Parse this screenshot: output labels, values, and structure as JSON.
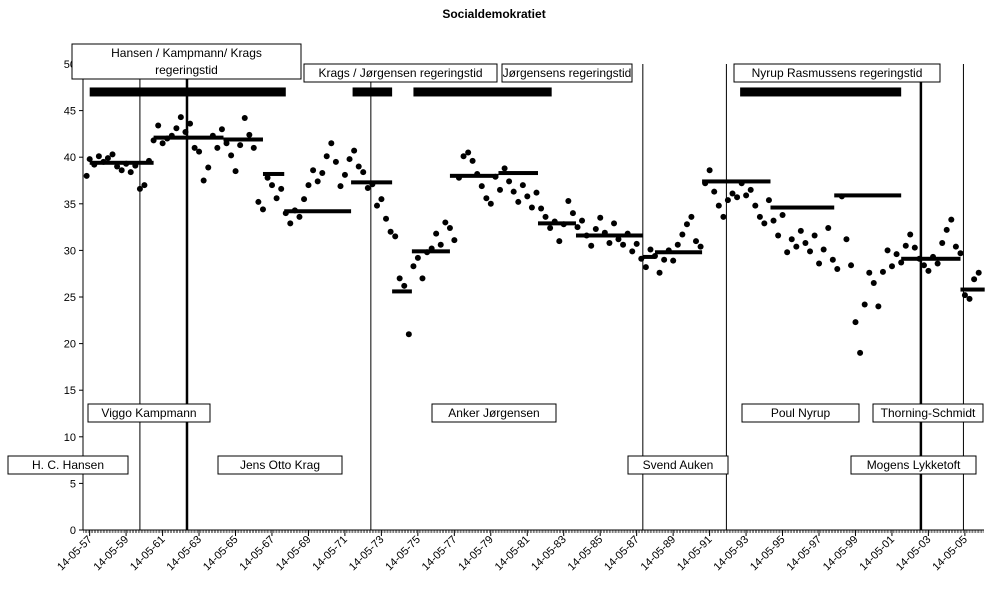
{
  "chart_data": {
    "type": "scatter",
    "title": "Socialdemokratiet",
    "xlabel": "",
    "ylabel": "",
    "ylim": [
      0,
      50
    ],
    "yticks": [
      0,
      5,
      10,
      15,
      20,
      25,
      30,
      35,
      40,
      45,
      50
    ],
    "xlim": [
      "1957-01-01",
      "2006-06-01"
    ],
    "xtick_labels": [
      "14-05-57",
      "14-05-59",
      "14-05-61",
      "14-05-63",
      "14-05-65",
      "14-05-67",
      "14-05-69",
      "14-05-71",
      "14-05-73",
      "14-05-75",
      "14-05-77",
      "14-05-79",
      "14-05-81",
      "14-05-83",
      "14-05-85",
      "14-05-87",
      "14-05-89",
      "14-05-91",
      "14-05-93",
      "14-05-95",
      "14-05-97",
      "14-05-99",
      "14-05-01",
      "14-05-03",
      "14-05-05"
    ],
    "grid": false,
    "poll_points": [
      [
        "1957-03",
        38.0
      ],
      [
        "1957-05",
        39.8
      ],
      [
        "1957-08",
        39.2
      ],
      [
        "1957-11",
        40.1
      ],
      [
        "1958-02",
        39.5
      ],
      [
        "1958-05",
        39.9
      ],
      [
        "1958-08",
        40.3
      ],
      [
        "1958-11",
        39.0
      ],
      [
        "1959-02",
        38.6
      ],
      [
        "1959-05",
        39.3
      ],
      [
        "1959-08",
        38.4
      ],
      [
        "1959-11",
        39.1
      ],
      [
        "1960-02",
        36.6
      ],
      [
        "1960-05",
        37.0
      ],
      [
        "1960-08",
        39.6
      ],
      [
        "1960-11",
        41.8
      ],
      [
        "1961-02",
        43.4
      ],
      [
        "1961-05",
        41.5
      ],
      [
        "1961-08",
        42.0
      ],
      [
        "1961-11",
        42.3
      ],
      [
        "1962-02",
        43.1
      ],
      [
        "1962-05",
        44.3
      ],
      [
        "1962-08",
        42.7
      ],
      [
        "1962-11",
        43.6
      ],
      [
        "1963-02",
        41.0
      ],
      [
        "1963-05",
        40.6
      ],
      [
        "1963-08",
        37.5
      ],
      [
        "1963-11",
        38.9
      ],
      [
        "1964-02",
        42.3
      ],
      [
        "1964-05",
        41.0
      ],
      [
        "1964-08",
        43.0
      ],
      [
        "1964-11",
        41.5
      ],
      [
        "1965-02",
        40.2
      ],
      [
        "1965-05",
        38.5
      ],
      [
        "1965-08",
        41.3
      ],
      [
        "1965-11",
        44.2
      ],
      [
        "1966-02",
        42.4
      ],
      [
        "1966-05",
        41.0
      ],
      [
        "1966-08",
        35.2
      ],
      [
        "1966-11",
        34.4
      ],
      [
        "1967-02",
        37.8
      ],
      [
        "1967-05",
        37.0
      ],
      [
        "1967-08",
        35.6
      ],
      [
        "1967-11",
        36.6
      ],
      [
        "1968-02",
        34.0
      ],
      [
        "1968-05",
        32.9
      ],
      [
        "1968-08",
        34.3
      ],
      [
        "1968-11",
        33.6
      ],
      [
        "1969-02",
        35.5
      ],
      [
        "1969-05",
        37.0
      ],
      [
        "1969-08",
        38.6
      ],
      [
        "1969-11",
        37.4
      ],
      [
        "1970-02",
        38.3
      ],
      [
        "1970-05",
        40.1
      ],
      [
        "1970-08",
        41.5
      ],
      [
        "1970-11",
        39.5
      ],
      [
        "1971-02",
        36.9
      ],
      [
        "1971-05",
        38.1
      ],
      [
        "1971-08",
        39.8
      ],
      [
        "1971-11",
        40.7
      ],
      [
        "1972-02",
        39.0
      ],
      [
        "1972-05",
        38.4
      ],
      [
        "1972-08",
        36.7
      ],
      [
        "1972-11",
        37.1
      ],
      [
        "1973-02",
        34.8
      ],
      [
        "1973-05",
        35.5
      ],
      [
        "1973-08",
        33.4
      ],
      [
        "1973-11",
        32.0
      ],
      [
        "1974-02",
        31.5
      ],
      [
        "1974-05",
        27.0
      ],
      [
        "1974-08",
        26.2
      ],
      [
        "1974-11",
        21.0
      ],
      [
        "1975-02",
        28.3
      ],
      [
        "1975-05",
        29.2
      ],
      [
        "1975-08",
        27.0
      ],
      [
        "1975-11",
        29.8
      ],
      [
        "1976-02",
        30.2
      ],
      [
        "1976-05",
        31.8
      ],
      [
        "1976-08",
        30.6
      ],
      [
        "1976-11",
        33.0
      ],
      [
        "1977-02",
        32.4
      ],
      [
        "1977-05",
        31.1
      ],
      [
        "1977-08",
        37.8
      ],
      [
        "1977-11",
        40.1
      ],
      [
        "1978-02",
        40.5
      ],
      [
        "1978-05",
        39.6
      ],
      [
        "1978-08",
        38.2
      ],
      [
        "1978-11",
        36.9
      ],
      [
        "1979-02",
        35.6
      ],
      [
        "1979-05",
        35.0
      ],
      [
        "1979-08",
        37.9
      ],
      [
        "1979-11",
        36.5
      ],
      [
        "1980-02",
        38.8
      ],
      [
        "1980-05",
        37.4
      ],
      [
        "1980-08",
        36.3
      ],
      [
        "1980-11",
        35.2
      ],
      [
        "1981-02",
        37.0
      ],
      [
        "1981-05",
        35.8
      ],
      [
        "1981-08",
        34.6
      ],
      [
        "1981-11",
        36.2
      ],
      [
        "1982-02",
        34.5
      ],
      [
        "1982-05",
        33.6
      ],
      [
        "1982-08",
        32.4
      ],
      [
        "1982-11",
        33.1
      ],
      [
        "1983-02",
        31.0
      ],
      [
        "1983-05",
        32.8
      ],
      [
        "1983-08",
        35.3
      ],
      [
        "1983-11",
        34.0
      ],
      [
        "1984-02",
        32.5
      ],
      [
        "1984-05",
        33.2
      ],
      [
        "1984-08",
        31.6
      ],
      [
        "1984-11",
        30.5
      ],
      [
        "1985-02",
        32.3
      ],
      [
        "1985-05",
        33.5
      ],
      [
        "1985-08",
        31.9
      ],
      [
        "1985-11",
        30.8
      ],
      [
        "1986-02",
        32.9
      ],
      [
        "1986-05",
        31.2
      ],
      [
        "1986-08",
        30.6
      ],
      [
        "1986-11",
        31.8
      ],
      [
        "1987-02",
        29.9
      ],
      [
        "1987-05",
        30.7
      ],
      [
        "1987-08",
        29.1
      ],
      [
        "1987-11",
        28.2
      ],
      [
        "1988-02",
        30.1
      ],
      [
        "1988-05",
        29.4
      ],
      [
        "1988-08",
        27.6
      ],
      [
        "1988-11",
        29.0
      ],
      [
        "1989-02",
        30.0
      ],
      [
        "1989-05",
        28.9
      ],
      [
        "1989-08",
        30.6
      ],
      [
        "1989-11",
        31.7
      ],
      [
        "1990-02",
        32.8
      ],
      [
        "1990-05",
        33.6
      ],
      [
        "1990-08",
        31.0
      ],
      [
        "1990-11",
        30.4
      ],
      [
        "1991-02",
        37.2
      ],
      [
        "1991-05",
        38.6
      ],
      [
        "1991-08",
        36.3
      ],
      [
        "1991-11",
        34.8
      ],
      [
        "1992-02",
        33.6
      ],
      [
        "1992-05",
        35.4
      ],
      [
        "1992-08",
        36.1
      ],
      [
        "1992-11",
        35.7
      ],
      [
        "1993-02",
        37.2
      ],
      [
        "1993-05",
        35.9
      ],
      [
        "1993-08",
        36.5
      ],
      [
        "1993-11",
        34.8
      ],
      [
        "1994-02",
        33.6
      ],
      [
        "1994-05",
        32.9
      ],
      [
        "1994-08",
        35.4
      ],
      [
        "1994-11",
        33.2
      ],
      [
        "1995-02",
        31.6
      ],
      [
        "1995-05",
        33.8
      ],
      [
        "1995-08",
        29.8
      ],
      [
        "1995-11",
        31.2
      ],
      [
        "1996-02",
        30.4
      ],
      [
        "1996-05",
        32.1
      ],
      [
        "1996-08",
        30.8
      ],
      [
        "1996-11",
        29.9
      ],
      [
        "1997-02",
        31.6
      ],
      [
        "1997-05",
        28.6
      ],
      [
        "1997-08",
        30.1
      ],
      [
        "1997-11",
        32.4
      ],
      [
        "1998-02",
        29.0
      ],
      [
        "1998-05",
        28.0
      ],
      [
        "1998-08",
        35.8
      ],
      [
        "1998-11",
        31.2
      ],
      [
        "1999-02",
        28.4
      ],
      [
        "1999-05",
        22.3
      ],
      [
        "1999-08",
        19.0
      ],
      [
        "1999-11",
        24.2
      ],
      [
        "2000-02",
        27.6
      ],
      [
        "2000-05",
        26.5
      ],
      [
        "2000-08",
        24.0
      ],
      [
        "2000-11",
        27.7
      ],
      [
        "2001-02",
        30.0
      ],
      [
        "2001-05",
        28.3
      ],
      [
        "2001-08",
        29.6
      ],
      [
        "2001-11",
        28.7
      ],
      [
        "2002-02",
        30.5
      ],
      [
        "2002-05",
        31.7
      ],
      [
        "2002-08",
        30.3
      ],
      [
        "2002-11",
        29.1
      ],
      [
        "2003-02",
        28.4
      ],
      [
        "2003-05",
        27.8
      ],
      [
        "2003-08",
        29.3
      ],
      [
        "2003-11",
        28.6
      ],
      [
        "2004-02",
        30.8
      ],
      [
        "2004-05",
        32.2
      ],
      [
        "2004-08",
        33.3
      ],
      [
        "2004-11",
        30.4
      ],
      [
        "2005-02",
        29.7
      ],
      [
        "2005-05",
        25.2
      ],
      [
        "2005-08",
        24.8
      ],
      [
        "2005-11",
        26.9
      ],
      [
        "2006-02",
        27.6
      ]
    ],
    "election_results": [
      [
        "1957-05",
        "1960-11",
        39.4
      ],
      [
        "1960-11",
        "1964-09",
        42.1
      ],
      [
        "1964-09",
        "1966-11",
        41.9
      ],
      [
        "1966-11",
        "1968-01",
        38.2
      ],
      [
        "1968-01",
        "1971-09",
        34.2
      ],
      [
        "1971-09",
        "1973-12",
        37.3
      ],
      [
        "1973-12",
        "1975-01",
        25.6
      ],
      [
        "1975-01",
        "1977-02",
        29.9
      ],
      [
        "1977-02",
        "1979-10",
        38.0
      ],
      [
        "1979-10",
        "1981-12",
        38.3
      ],
      [
        "1981-12",
        "1984-01",
        32.9
      ],
      [
        "1984-01",
        "1987-09",
        31.6
      ],
      [
        "1987-09",
        "1988-05",
        29.3
      ],
      [
        "1988-05",
        "1990-12",
        29.8
      ],
      [
        "1990-12",
        "1994-09",
        37.4
      ],
      [
        "1994-09",
        "1998-03",
        34.6
      ],
      [
        "1998-03",
        "2001-11",
        35.9
      ],
      [
        "2001-11",
        "2005-02",
        29.1
      ],
      [
        "2005-02",
        "2006-06",
        25.8
      ]
    ],
    "government_periods": [
      {
        "label": "Hansen / Kampmann/ Krags regeringstid",
        "start": "1957-05",
        "end": "1968-02",
        "y": 47
      }
    ],
    "government_bars": [
      {
        "start": "1971-10",
        "end": "1973-12",
        "y": 47
      },
      {
        "start": "1975-02",
        "end": "1982-09",
        "y": 47
      },
      {
        "start": "1993-01",
        "end": "2001-11",
        "y": 47
      }
    ],
    "government_labels": [
      {
        "label": "Krags / Jørgensen regeringstid"
      },
      {
        "label": "Jørgensens regeringstid"
      },
      {
        "label": "Nyrup Rasmussens regeringstid"
      }
    ],
    "leader_changes": [
      "1960-02",
      "1962-09",
      "1972-10",
      "1987-09",
      "1992-04",
      "2002-12",
      "2005-04"
    ],
    "thick_vertical_lines": [
      "1962-09",
      "2002-12"
    ],
    "leaders": [
      {
        "name": "H. C. Hansen",
        "row": "lower"
      },
      {
        "name": "Viggo Kampmann",
        "row": "upper"
      },
      {
        "name": "Jens Otto Krag",
        "row": "lower"
      },
      {
        "name": "Anker Jørgensen",
        "row": "upper"
      },
      {
        "name": "Svend Auken",
        "row": "lower"
      },
      {
        "name": "Poul Nyrup",
        "row": "upper"
      },
      {
        "name": "Thorning-Schmidt",
        "row": "upper"
      },
      {
        "name": "Mogens Lykketoft",
        "row": "lower"
      }
    ]
  }
}
